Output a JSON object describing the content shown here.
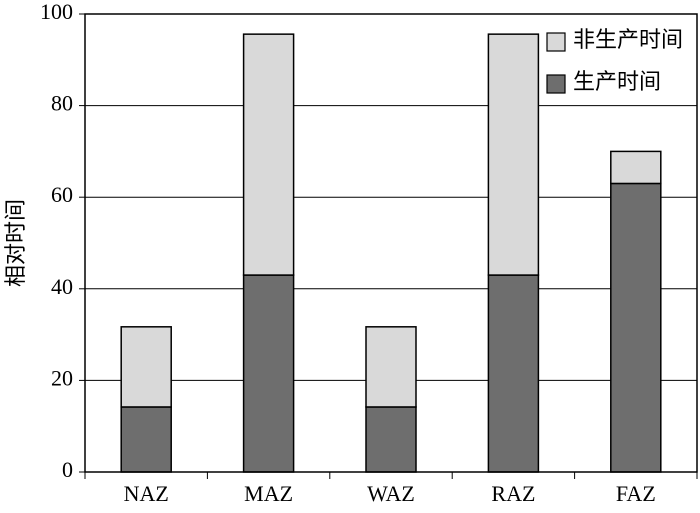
{
  "chart_data": {
    "type": "stacked_bar",
    "y_label": "相对时间",
    "categories": [
      "NAZ",
      "MAZ",
      "WAZ",
      "RAZ",
      "FAZ"
    ],
    "series": [
      {
        "name": "生产时间",
        "color": "#6e6e6e",
        "values": [
          14.2,
          43,
          14.2,
          43,
          63
        ]
      },
      {
        "name": "非生产时间",
        "color": "#d9d9d9",
        "values": [
          17.5,
          52.6,
          17.5,
          52.6,
          7
        ]
      }
    ],
    "ylim": [
      0,
      100
    ],
    "yticks": [
      0,
      20,
      40,
      60,
      80,
      100
    ],
    "grid": true,
    "legend": "top-right"
  }
}
